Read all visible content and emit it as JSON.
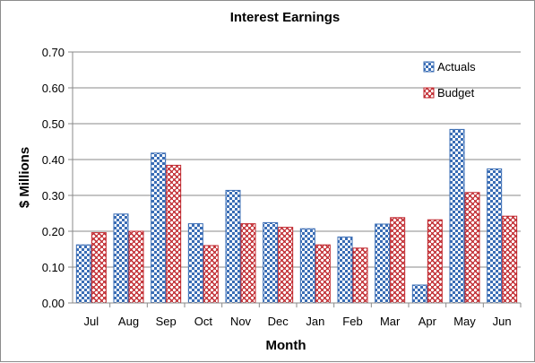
{
  "chart_data": {
    "type": "bar",
    "title": "Interest Earnings",
    "xlabel": "Month",
    "ylabel": "$ Millions",
    "categories": [
      "Jul",
      "Aug",
      "Sep",
      "Oct",
      "Nov",
      "Dec",
      "Jan",
      "Feb",
      "Mar",
      "Apr",
      "May",
      "Jun"
    ],
    "series": [
      {
        "name": "Actuals",
        "color": "#3a6db5",
        "pattern": "checkerboard",
        "values": [
          0.162,
          0.248,
          0.418,
          0.221,
          0.314,
          0.224,
          0.207,
          0.184,
          0.22,
          0.05,
          0.484,
          0.374
        ]
      },
      {
        "name": "Budget",
        "color": "#c0272d",
        "pattern": "weave",
        "values": [
          0.196,
          0.2,
          0.384,
          0.16,
          0.221,
          0.211,
          0.162,
          0.153,
          0.238,
          0.232,
          0.308,
          0.242
        ]
      }
    ],
    "yticks": [
      "0.00",
      "0.10",
      "0.20",
      "0.30",
      "0.40",
      "0.50",
      "0.60",
      "0.70"
    ],
    "ylim": [
      0,
      0.7
    ],
    "grid": true,
    "legend_position": "top-right"
  }
}
